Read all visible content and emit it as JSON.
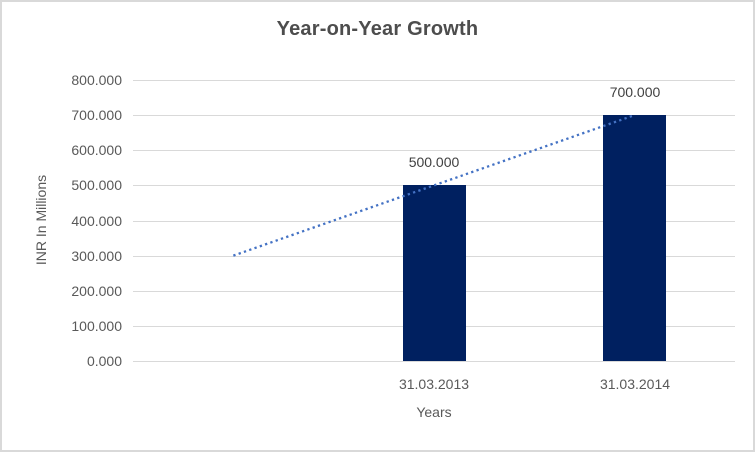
{
  "window": {
    "background": "#FFFFFF",
    "border_color": "#D9D9D9"
  },
  "chart_data": {
    "type": "bar",
    "title": "Year-on-Year Growth",
    "xlabel": "Years",
    "ylabel": "INR In Millions",
    "ylim": [
      0,
      800
    ],
    "ytick_step": 100,
    "grid": true,
    "legend": false,
    "categories": [
      "",
      "31.03.2013",
      "31.03.2014"
    ],
    "values": [
      null,
      500,
      700
    ],
    "data_labels": [
      null,
      "500.000",
      "700.000"
    ],
    "y_ticks": [
      {
        "value": 0,
        "label": "0.000"
      },
      {
        "value": 100,
        "label": "100.000"
      },
      {
        "value": 200,
        "label": "200.000"
      },
      {
        "value": 300,
        "label": "300.000"
      },
      {
        "value": 400,
        "label": "400.000"
      },
      {
        "value": 500,
        "label": "500.000"
      },
      {
        "value": 600,
        "label": "600.000"
      },
      {
        "value": 700,
        "label": "700.000"
      },
      {
        "value": 800,
        "label": "800.000"
      }
    ],
    "bar_color": "#002060",
    "data_label_color": "#404040",
    "tick_color": "#595959",
    "gridline_color": "#D9D9D9",
    "trendline": {
      "style": "dotted",
      "color": "#4472C4",
      "from": {
        "category_index": 0,
        "value": 300
      },
      "to": {
        "category_index": 2,
        "value": 700
      }
    }
  }
}
